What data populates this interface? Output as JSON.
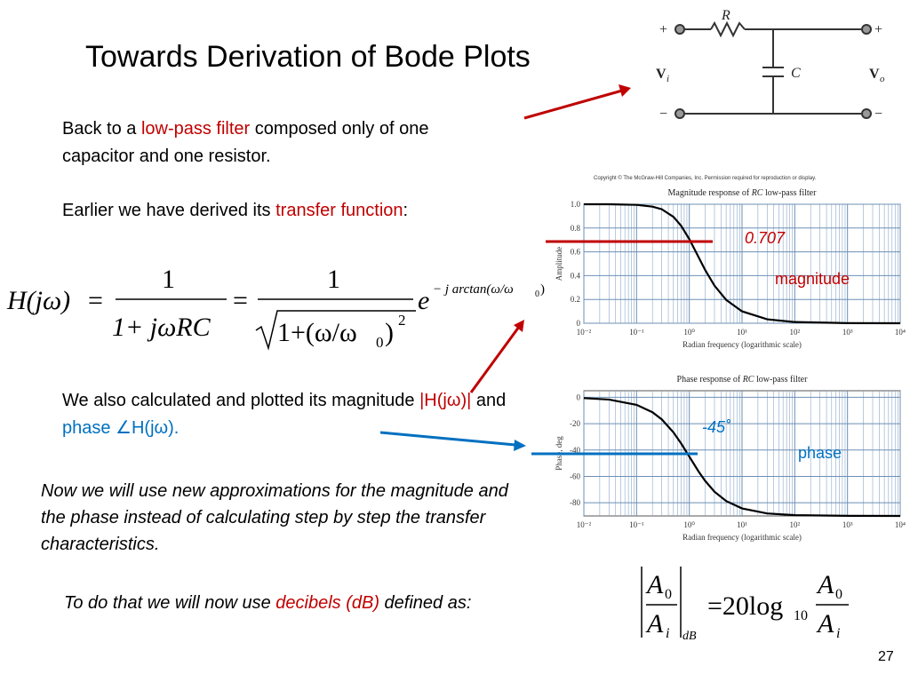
{
  "title": "Towards Derivation of Bode Plots",
  "intro": [
    "Back to a ",
    "low-pass filter",
    " composed only of one capacitor and one resistor."
  ],
  "earlier": [
    "Earlier we have derived its ",
    "transfer function",
    ":"
  ],
  "transfer_equation": {
    "lhs": "H(jω)",
    "eq1": "=",
    "num1": "1",
    "den1": "1+ jωRC",
    "eq2": "=",
    "num2": "1",
    "den2": "1+(ω/ω",
    "den2_sub": "0",
    "den2_close": ")",
    "den2_exp": "2",
    "exp_base": "e",
    "exp": "− j arctan(ω/ω",
    "exp_sub": "0",
    "exp_close": " )"
  },
  "also": [
    "We also calculated and plotted its magnitude ",
    "|H(jω)|",
    " and ",
    "phase ∠H(jω)."
  ],
  "approximations": "Now we will use new approximations for the magnitude and the phase instead of calculating step by step the transfer characteristics.",
  "decibels": [
    "To do that we will now use ",
    "decibels (dB)",
    " defined as:"
  ],
  "db_equation": {
    "num": "A",
    "num_sub": "0",
    "den": "A",
    "den_sub": "i",
    "unit": "dB",
    "rhs": "=20log",
    "log_base": "10",
    "num2": "A",
    "num2_sub": "0",
    "den2": "A",
    "den2_sub": "i"
  },
  "circuit": {
    "r": "R",
    "c": "C",
    "vi": "V",
    "vi_sub": "i",
    "vo": "V",
    "vo_sub": "o",
    "plus_in": "+",
    "plus_out": "+",
    "minus_in": "−",
    "minus_out": "−"
  },
  "copyright": "Copyright © The McGraw-Hill Companies, Inc. Permission required for reproduction or display.",
  "magnitude_plot": {
    "type": "line",
    "title": [
      "Magnitude response of ",
      "RC",
      " low-pass filter"
    ],
    "y_label": "Amplitude",
    "x_label": "Radian frequency (logarithmic scale)",
    "log_x": true,
    "grid": true,
    "color": "#000000",
    "x": [
      0.01,
      0.03,
      0.1,
      0.2,
      0.3,
      0.5,
      0.7,
      1,
      1.5,
      2,
      3,
      5,
      10,
      30,
      100,
      1000,
      10000
    ],
    "values": [
      1,
      1,
      0.995,
      0.98,
      0.958,
      0.894,
      0.819,
      0.707,
      0.555,
      0.447,
      0.316,
      0.196,
      0.1,
      0.033,
      0.01,
      0.001,
      0
    ],
    "xlim": [
      0.01,
      10000
    ],
    "xticks": [
      {
        "value": 0.01,
        "label": "10⁻²"
      },
      {
        "value": 0.1,
        "label": "10⁻¹"
      },
      {
        "value": 1,
        "label": "10⁰"
      },
      {
        "value": 10,
        "label": "10¹"
      },
      {
        "value": 100,
        "label": "10²"
      },
      {
        "value": 1000,
        "label": "10³"
      },
      {
        "value": 10000,
        "label": "10⁴"
      }
    ],
    "ylim": [
      0,
      1
    ],
    "yticks": [
      0,
      0.2,
      0.4,
      0.6,
      0.8,
      {
        "value": 1,
        "label": "1.0"
      }
    ],
    "annotations": [
      "0.707",
      "magnitude"
    ]
  },
  "phase_plot": {
    "type": "line",
    "title": [
      "Phase response of ",
      "RC",
      " low-pass filter"
    ],
    "y_label": "Phase, deg",
    "x_label": "Radian frequency (logarithmic scale)",
    "log_x": true,
    "grid": true,
    "color": "#000000",
    "x": [
      0.01,
      0.03,
      0.1,
      0.2,
      0.3,
      0.5,
      0.7,
      1,
      1.5,
      2,
      3,
      5,
      10,
      30,
      100,
      1000,
      10000
    ],
    "values": [
      -0.6,
      -1.7,
      -5.7,
      -11.3,
      -16.7,
      -26.6,
      -35,
      -45,
      -56.3,
      -63.4,
      -71.6,
      -78.7,
      -84.3,
      -88.1,
      -89.4,
      -89.9,
      -90
    ],
    "xlim": [
      0.01,
      10000
    ],
    "xticks": [
      {
        "value": 0.01,
        "label": "10⁻²"
      },
      {
        "value": 0.1,
        "label": "10⁻¹"
      },
      {
        "value": 1,
        "label": "10⁰"
      },
      {
        "value": 10,
        "label": "10¹"
      },
      {
        "value": 100,
        "label": "10²"
      },
      {
        "value": 1000,
        "label": "10³"
      },
      {
        "value": 10000,
        "label": "10⁴"
      }
    ],
    "ylim": [
      -90,
      5
    ],
    "yticks": [
      0,
      -20,
      -40,
      -60,
      -80
    ],
    "annotations": [
      "-45˚",
      "phase"
    ]
  },
  "page_number": "27"
}
